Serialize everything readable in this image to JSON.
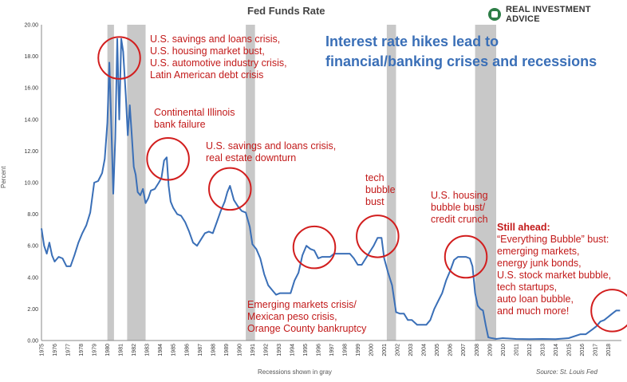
{
  "title": "Fed Funds Rate",
  "brand": "REAL INVESTMENT ADVICE",
  "ylabel": "Percent",
  "xnote": "Recessions shown in gray",
  "source": "Source: St. Louis Fed",
  "headline": [
    "Interest rate hikes lead to",
    "financial/banking crises and recessions"
  ],
  "annotations": {
    "a1980": [
      "U.S. savings and loans crisis,",
      "U.S. housing market bust,",
      "U.S. automotive industry crisis,",
      "Latin American debt crisis"
    ],
    "a1984": [
      "Continental Illinois",
      "bank failure"
    ],
    "a1989": [
      "U.S. savings and loans crisis,",
      "real estate downturn"
    ],
    "a1995": [
      "Emerging markets crisis/",
      "Mexican peso crisis,",
      "Orange County bankruptcy"
    ],
    "a2000": [
      "tech",
      "bubble",
      "bust"
    ],
    "a2007": [
      "U.S. housing",
      "bubble bust/",
      "credit crunch"
    ],
    "ahead_title": "Still ahead:",
    "ahead": [
      "“Everything Bubble” bust:",
      "emerging markets,",
      "energy junk bonds,",
      "U.S. stock market bubble,",
      "tech startups,",
      "auto loan bubble,",
      "and much more!"
    ]
  },
  "colors": {
    "line": "#3a6fb7",
    "recession": "#c8c8c8",
    "circle": "#d21e1e",
    "text_red": "#c21a1a"
  },
  "chart_data": {
    "type": "line",
    "title": "Fed Funds Rate",
    "ylabel": "Percent",
    "xlabel": "Recessions shown in gray",
    "ylim": [
      0,
      20
    ],
    "xlim": [
      1975,
      2019
    ],
    "yticks": [
      "0.00",
      "2.00",
      "4.00",
      "6.00",
      "8.00",
      "10.00",
      "12.00",
      "14.00",
      "16.00",
      "18.00",
      "20.00"
    ],
    "xticks": [
      "1975",
      "1976",
      "1977",
      "1978",
      "1979",
      "1980",
      "1981",
      "1982",
      "1983",
      "1984",
      "1985",
      "1986",
      "1987",
      "1988",
      "1989",
      "1990",
      "1991",
      "1992",
      "1993",
      "1994",
      "1995",
      "1996",
      "1997",
      "1998",
      "1999",
      "2000",
      "2001",
      "2002",
      "2003",
      "2004",
      "2005",
      "2006",
      "2007",
      "2008",
      "2009",
      "2010",
      "2011",
      "2012",
      "2013",
      "2014",
      "2015",
      "2016",
      "2017",
      "2018"
    ],
    "recessions": [
      [
        1980.0,
        1980.5
      ],
      [
        1981.5,
        1982.9
      ],
      [
        1990.5,
        1991.2
      ],
      [
        2001.2,
        2001.9
      ],
      [
        2007.9,
        2009.5
      ]
    ],
    "series": [
      {
        "x": [
          1975.0,
          1975.2,
          1975.4,
          1975.6,
          1975.8,
          1976.0,
          1976.3,
          1976.6,
          1976.9,
          1977.2,
          1977.5,
          1977.8,
          1978.1,
          1978.4,
          1978.7,
          1979.0,
          1979.3,
          1979.6,
          1979.8,
          1980.0,
          1980.15,
          1980.3,
          1980.45,
          1980.6,
          1980.75,
          1980.9,
          1981.05,
          1981.2,
          1981.4,
          1981.55,
          1981.7,
          1981.85,
          1982.0,
          1982.15,
          1982.3,
          1982.5,
          1982.7,
          1982.9,
          1983.1,
          1983.3,
          1983.6,
          1983.9,
          1984.1,
          1984.3,
          1984.5,
          1984.65,
          1984.8,
          1985.0,
          1985.3,
          1985.6,
          1985.9,
          1986.2,
          1986.5,
          1986.8,
          1987.1,
          1987.4,
          1987.7,
          1988.0,
          1988.3,
          1988.6,
          1988.9,
          1989.1,
          1989.3,
          1989.6,
          1989.9,
          1990.2,
          1990.5,
          1990.8,
          1991.0,
          1991.3,
          1991.6,
          1991.9,
          1992.2,
          1992.5,
          1992.8,
          1993.1,
          1993.5,
          1993.9,
          1994.2,
          1994.5,
          1994.8,
          1995.1,
          1995.4,
          1995.7,
          1996.0,
          1996.3,
          1996.6,
          1996.9,
          1997.2,
          1997.5,
          1997.8,
          1998.1,
          1998.4,
          1998.7,
          1999.0,
          1999.3,
          1999.6,
          1999.9,
          2000.2,
          2000.5,
          2000.8,
          2001.0,
          2001.3,
          2001.6,
          2001.9,
          2002.2,
          2002.5,
          2002.8,
          2003.1,
          2003.5,
          2003.9,
          2004.2,
          2004.5,
          2004.8,
          2005.1,
          2005.4,
          2005.7,
          2006.0,
          2006.3,
          2006.6,
          2006.9,
          2007.2,
          2007.5,
          2007.7,
          2007.9,
          2008.1,
          2008.3,
          2008.5,
          2008.7,
          2008.9,
          2009.1,
          2009.5,
          2010.0,
          2011.0,
          2012.0,
          2013.0,
          2014.0,
          2015.0,
          2015.9,
          2016.3,
          2016.8,
          2017.1,
          2017.4,
          2017.7,
          2018.0,
          2018.3,
          2018.6,
          2018.9
        ],
        "y": [
          7.1,
          6.0,
          5.5,
          6.2,
          5.4,
          5.0,
          5.3,
          5.2,
          4.7,
          4.7,
          5.4,
          6.2,
          6.8,
          7.3,
          8.1,
          10.0,
          10.1,
          10.6,
          11.5,
          13.8,
          17.6,
          13.5,
          9.3,
          12.8,
          19.1,
          14.0,
          19.1,
          18.3,
          15.5,
          13.0,
          14.9,
          13.0,
          11.0,
          10.5,
          9.4,
          9.2,
          9.6,
          8.7,
          9.0,
          9.5,
          9.6,
          10.0,
          10.3,
          11.4,
          11.6,
          9.8,
          8.8,
          8.4,
          8.0,
          7.9,
          7.5,
          6.9,
          6.2,
          6.0,
          6.4,
          6.8,
          6.9,
          6.8,
          7.5,
          8.2,
          8.8,
          9.4,
          9.8,
          8.9,
          8.5,
          8.2,
          8.1,
          7.2,
          6.1,
          5.8,
          5.2,
          4.2,
          3.5,
          3.2,
          2.9,
          3.0,
          3.0,
          3.0,
          3.8,
          4.3,
          5.4,
          6.0,
          5.8,
          5.7,
          5.2,
          5.3,
          5.3,
          5.3,
          5.5,
          5.5,
          5.5,
          5.5,
          5.5,
          5.2,
          4.8,
          4.8,
          5.2,
          5.6,
          6.0,
          6.5,
          6.5,
          5.2,
          4.3,
          3.5,
          1.8,
          1.7,
          1.7,
          1.3,
          1.3,
          1.0,
          1.0,
          1.0,
          1.3,
          2.0,
          2.5,
          3.0,
          3.8,
          4.4,
          5.1,
          5.3,
          5.3,
          5.3,
          5.2,
          4.7,
          3.0,
          2.2,
          2.0,
          1.9,
          1.0,
          0.2,
          0.16,
          0.1,
          0.15,
          0.1,
          0.09,
          0.1,
          0.09,
          0.15,
          0.4,
          0.4,
          0.7,
          0.9,
          1.2,
          1.3,
          1.5,
          1.7,
          1.9,
          1.9
        ]
      }
    ]
  }
}
